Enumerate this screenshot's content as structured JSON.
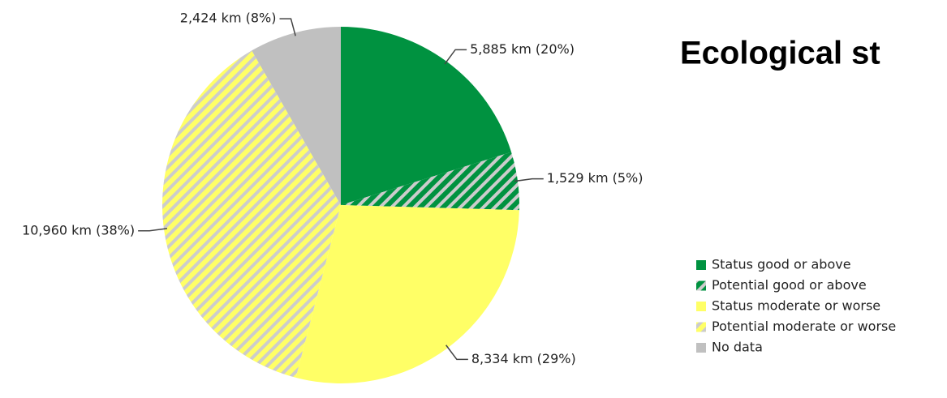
{
  "chart_data": {
    "type": "pie",
    "title": "Ecological st",
    "categories": [
      "Status good or above",
      "Potential good or above",
      "Status moderate or worse",
      "Potential moderate or worse",
      "No data"
    ],
    "values": [
      5885,
      1529,
      8334,
      10960,
      2424
    ],
    "value_labels": [
      "5,885 km (20%)",
      "1,529 km (5%)",
      "8,334 km (29%)",
      "10,960 km (38%)",
      "2,424 km (8%)"
    ],
    "colors": [
      "#009240",
      "#009240",
      "#ffff66",
      "#ffff66",
      "#c0c0c0"
    ],
    "hatched": [
      false,
      true,
      false,
      true,
      false
    ],
    "legend": "right"
  }
}
